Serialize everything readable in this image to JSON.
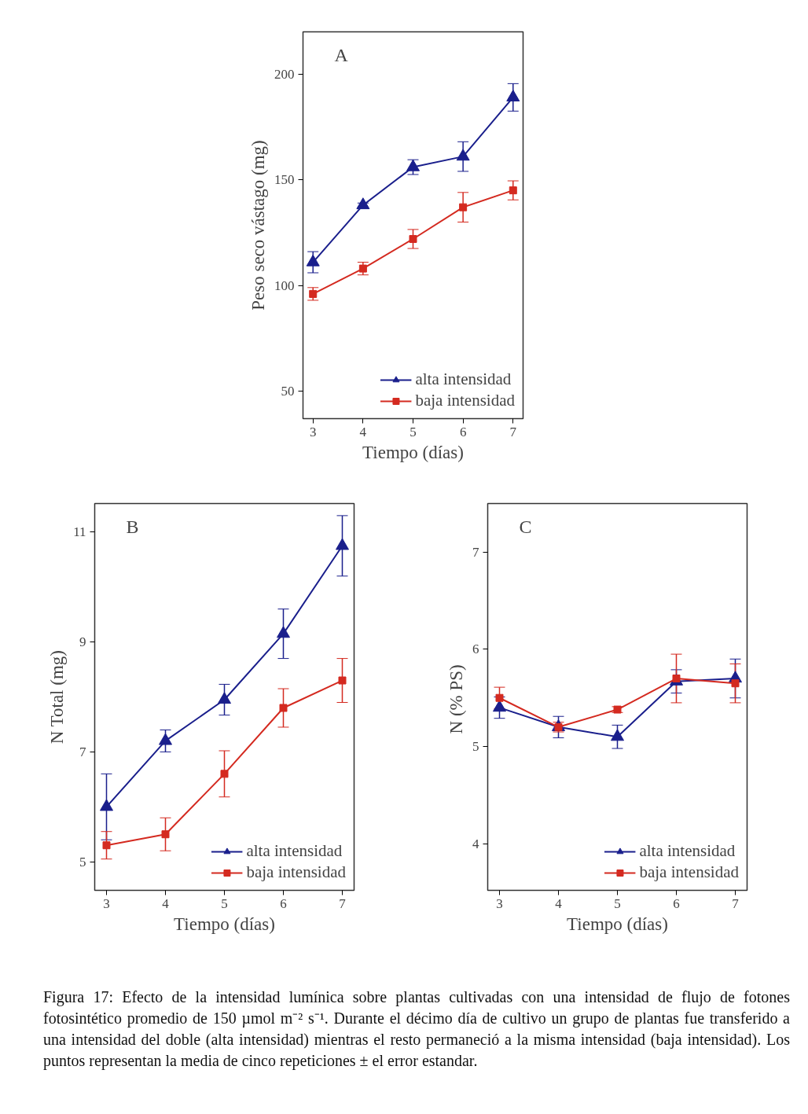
{
  "chart_data": [
    {
      "type": "line",
      "annotations": [
        "A"
      ],
      "xlabel": "Tiempo (días)",
      "ylabel": "Peso seco vástago (mg)",
      "x": [
        3,
        4,
        5,
        6,
        7
      ],
      "xlim": [
        2.8,
        7.2
      ],
      "xticks": [
        3,
        4,
        5,
        6,
        7
      ],
      "ylim": [
        37,
        220
      ],
      "yticks": [
        50,
        100,
        150,
        200
      ],
      "grid": false,
      "legend": "bottom right",
      "series": [
        {
          "name": "alta intensidad",
          "color": "#1a1f8c",
          "marker": "triangle",
          "values": [
            111,
            138,
            156,
            161,
            189
          ],
          "errors": [
            5,
            1,
            3.5,
            7,
            6.5
          ]
        },
        {
          "name": "baja intensidad",
          "color": "#d42a20",
          "marker": "square",
          "values": [
            96,
            108,
            122,
            137,
            145
          ],
          "errors": [
            3,
            3,
            4.5,
            7,
            4.5
          ]
        }
      ]
    },
    {
      "type": "line",
      "annotations": [
        "B"
      ],
      "xlabel": "Tiempo (días)",
      "ylabel": "N Total (mg)",
      "x": [
        3,
        4,
        5,
        6,
        7
      ],
      "xlim": [
        2.8,
        7.2
      ],
      "xticks": [
        3,
        4,
        5,
        6,
        7
      ],
      "ylim": [
        4.48,
        11.52
      ],
      "yticks": [
        5,
        7,
        9,
        11
      ],
      "grid": false,
      "legend": "bottom right",
      "series": [
        {
          "name": "alta intensidad",
          "color": "#1a1f8c",
          "marker": "triangle",
          "values": [
            6.0,
            7.2,
            7.95,
            9.15,
            10.75
          ],
          "errors": [
            0.6,
            0.2,
            0.28,
            0.45,
            0.55
          ]
        },
        {
          "name": "baja intensidad",
          "color": "#d42a20",
          "marker": "square",
          "values": [
            5.3,
            5.5,
            6.6,
            7.8,
            8.3
          ],
          "errors": [
            0.25,
            0.3,
            0.42,
            0.35,
            0.4
          ]
        }
      ]
    },
    {
      "type": "line",
      "annotations": [
        "C",
        "Figura 17: Efecto de la intensidad lumínica sobre plantas cultivadas con una intensidad de flujo de fotones fotosintético promedio de 150 µmol m⁻² s⁻¹. Durante el décimo día de cultivo un grupo de plantas fue transferido a una intensidad del doble (alta  intensidad) mientras el resto permaneció a la misma intensidad (baja intensidad). Los puntos representan la media de cinco  repeticiones ± el error estandar."
      ],
      "xlabel": "Tiempo (días)",
      "ylabel": "N  (% PS)",
      "x": [
        3,
        4,
        5,
        6,
        7
      ],
      "xlim": [
        2.8,
        7.2
      ],
      "xticks": [
        3,
        4,
        5,
        6,
        7
      ],
      "ylim": [
        3.52,
        7.5
      ],
      "yticks": [
        4,
        5,
        6,
        7
      ],
      "grid": false,
      "legend": "bottom right",
      "series": [
        {
          "name": "alta intensidad",
          "color": "#1a1f8c",
          "marker": "triangle",
          "values": [
            5.4,
            5.2,
            5.1,
            5.67,
            5.7
          ],
          "errors": [
            0.11,
            0.11,
            0.12,
            0.12,
            0.2
          ]
        },
        {
          "name": "baja intensidad",
          "color": "#d42a20",
          "marker": "square",
          "values": [
            5.5,
            5.2,
            5.38,
            5.7,
            5.65
          ],
          "errors": [
            0.11,
            0.05,
            0.03,
            0.25,
            0.2
          ]
        }
      ]
    }
  ]
}
